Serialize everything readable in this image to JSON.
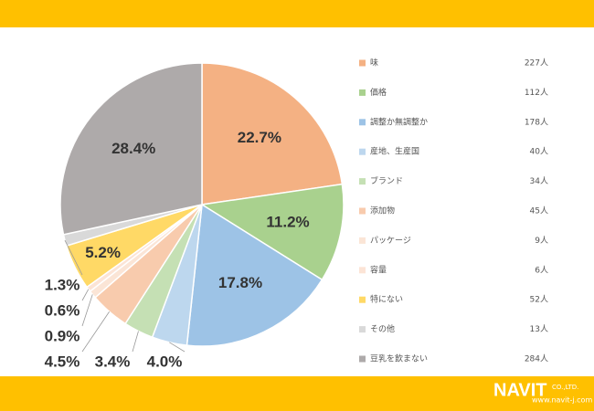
{
  "chart_data": {
    "type": "pie",
    "categories": [
      "味",
      "価格",
      "調整か無調整か",
      "産地、生産国",
      "ブランド",
      "添加物",
      "パッケージ",
      "容量",
      "特にない",
      "その他",
      "豆乳を飲まない"
    ],
    "values": [
      22.7,
      11.2,
      17.8,
      4.0,
      3.4,
      4.5,
      0.9,
      0.6,
      5.2,
      1.3,
      28.4
    ],
    "value_labels": [
      "22.7%",
      "11.2%",
      "17.8%",
      "4.0%",
      "3.4%",
      "4.5%",
      "0.9%",
      "0.6%",
      "5.2%",
      "1.3%",
      "28.4%"
    ],
    "counts": [
      {
        "value": 227,
        "label": "227人"
      },
      {
        "value": 112,
        "label": "112人"
      },
      {
        "value": 178,
        "label": "178人"
      },
      {
        "value": 40,
        "label": "40人"
      },
      {
        "value": 34,
        "label": "34人"
      },
      {
        "value": 45,
        "label": "45人"
      },
      {
        "value": 9,
        "label": "9人"
      },
      {
        "value": 6,
        "label": "6人"
      },
      {
        "value": 52,
        "label": "52人"
      },
      {
        "value": 13,
        "label": "13人"
      },
      {
        "value": 284,
        "label": "284人"
      }
    ],
    "colors": [
      "#f4b183",
      "#a9d18e",
      "#9dc3e6",
      "#bdd7ee",
      "#c5e0b4",
      "#f8cbad",
      "#fbe5d6",
      "#fce4d6",
      "#ffd966",
      "#d9d9d9",
      "#aeaaaa"
    ]
  },
  "branding": {
    "logo": "NAVIT",
    "company": "CO.,LTD.",
    "url": "www.navit-j.com"
  }
}
